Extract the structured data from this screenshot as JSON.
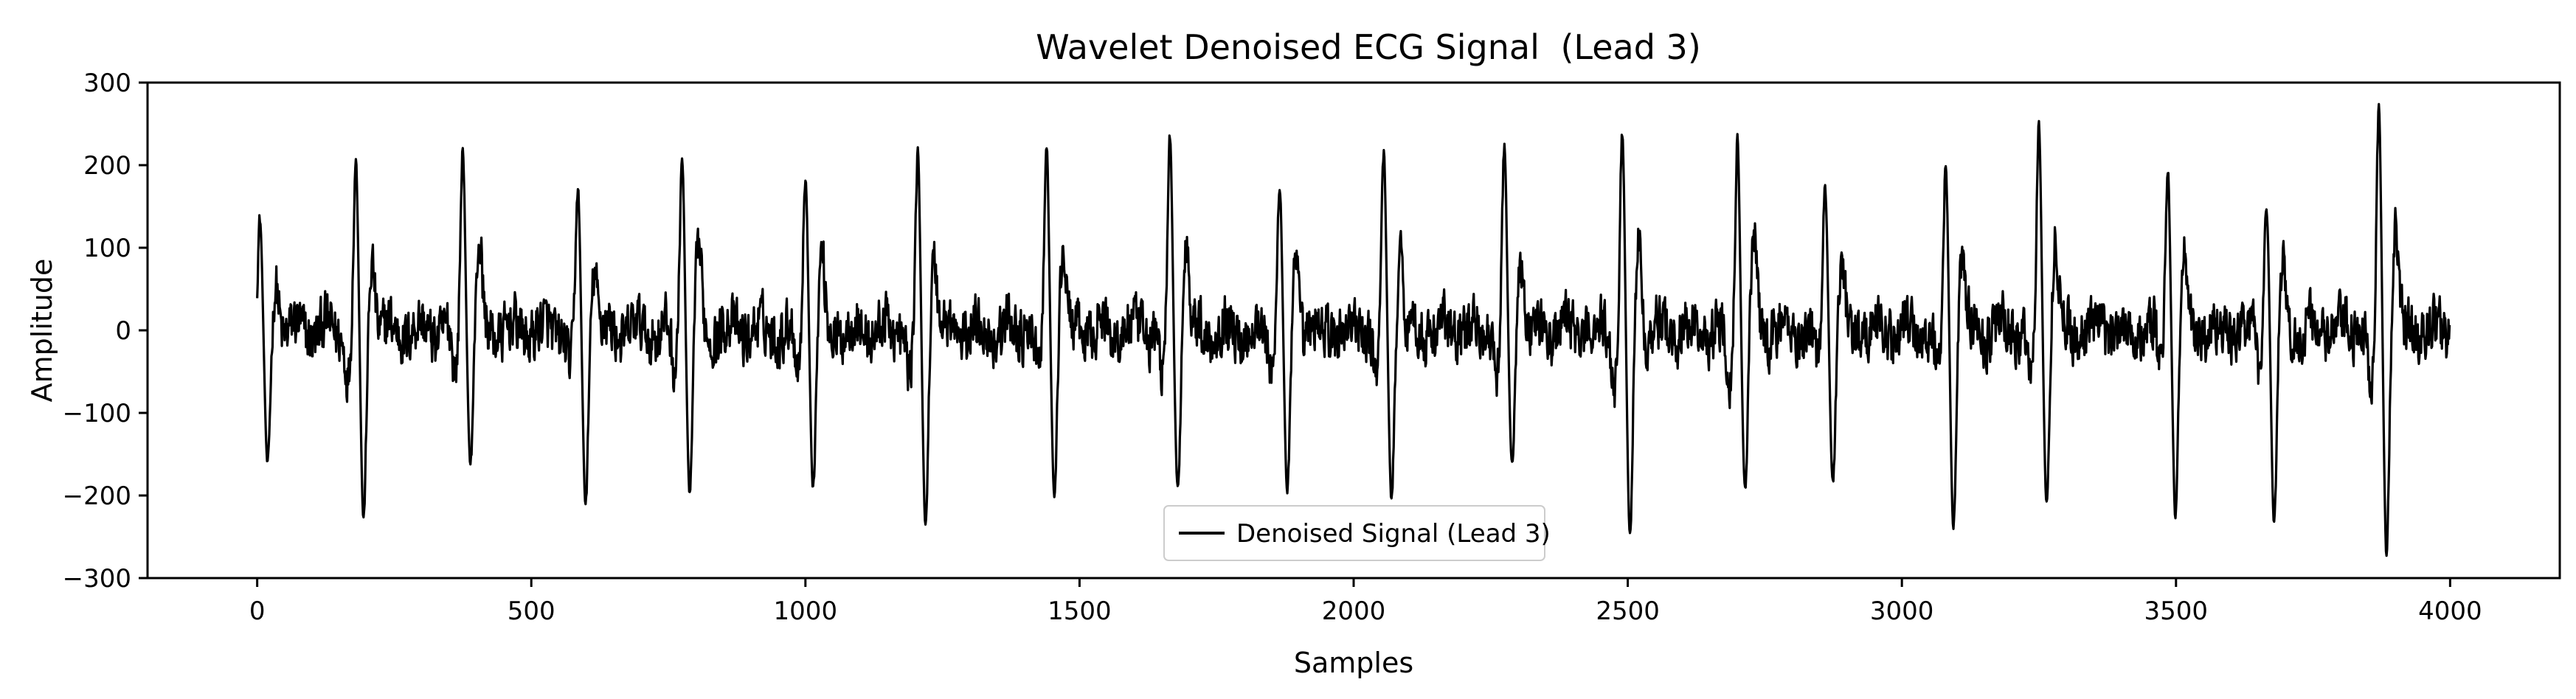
{
  "chart_data": {
    "type": "line",
    "title": "Wavelet Denoised ECG Signal",
    "title_suffix": "(Lead 3)",
    "xlabel": "Samples",
    "ylabel": "Amplitude",
    "xlim": [
      -200,
      4200
    ],
    "ylim": [
      -300,
      300
    ],
    "xticks": [
      0,
      500,
      1000,
      1500,
      2000,
      2500,
      3000,
      3500,
      4000
    ],
    "yticks": [
      -300,
      -200,
      -100,
      0,
      100,
      200,
      300
    ],
    "xtick_labels": [
      "0",
      "500",
      "1000",
      "1500",
      "2000",
      "2500",
      "3000",
      "3500",
      "4000"
    ],
    "ytick_labels": [
      "−300",
      "−200",
      "−100",
      "0",
      "100",
      "200",
      "300"
    ],
    "grid": false,
    "legend_position": "bottom-center",
    "series": [
      {
        "name": "Denoised Signal (Lead 3)",
        "color": "#000000",
        "n_samples": 4000,
        "baseline_noise_amplitude": 35,
        "beats": [
          {
            "x": 5,
            "peak": 135,
            "trough": -165,
            "peak_first": true
          },
          {
            "x": 180,
            "peak": 205,
            "trough": -230,
            "peak_first": true
          },
          {
            "x": 375,
            "peak": 225,
            "trough": -160,
            "peak_first": true
          },
          {
            "x": 585,
            "peak": 172,
            "trough": -210,
            "peak_first": true
          },
          {
            "x": 775,
            "peak": 215,
            "trough": -200,
            "peak_first": true
          },
          {
            "x": 1000,
            "peak": 190,
            "trough": -190,
            "peak_first": true
          },
          {
            "x": 1205,
            "peak": 215,
            "trough": -235,
            "peak_first": true
          },
          {
            "x": 1440,
            "peak": 222,
            "trough": -198,
            "peak_first": true
          },
          {
            "x": 1665,
            "peak": 235,
            "trough": -190,
            "peak_first": true
          },
          {
            "x": 1865,
            "peak": 180,
            "trough": -198,
            "peak_first": true
          },
          {
            "x": 2055,
            "peak": 215,
            "trough": -205,
            "peak_first": true
          },
          {
            "x": 2275,
            "peak": 225,
            "trough": -165,
            "peak_first": true
          },
          {
            "x": 2490,
            "peak": 243,
            "trough": -250,
            "peak_first": true
          },
          {
            "x": 2700,
            "peak": 240,
            "trough": -195,
            "peak_first": true
          },
          {
            "x": 2860,
            "peak": 175,
            "trough": -185,
            "peak_first": true
          },
          {
            "x": 3080,
            "peak": 200,
            "trough": -240,
            "peak_first": true
          },
          {
            "x": 3250,
            "peak": 250,
            "trough": -210,
            "peak_first": true
          },
          {
            "x": 3485,
            "peak": 200,
            "trough": -225,
            "peak_first": true
          },
          {
            "x": 3665,
            "peak": 155,
            "trough": -238,
            "peak_first": true
          },
          {
            "x": 3870,
            "peak": 272,
            "trough": -272,
            "peak_first": true
          }
        ]
      }
    ]
  }
}
